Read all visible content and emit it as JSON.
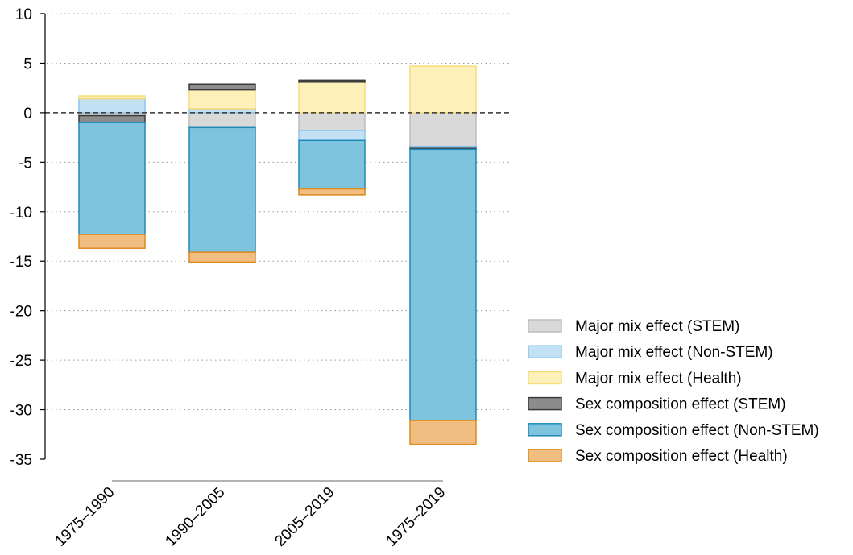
{
  "chart_data": {
    "type": "bar",
    "stacked": true,
    "categories": [
      "1975–1990",
      "1990–2005",
      "2005–2019",
      "1975–2019"
    ],
    "ylim": [
      -35,
      10
    ],
    "yticks": [
      "10",
      "5",
      "0",
      "-5",
      "-10",
      "-15",
      "-20",
      "-25",
      "-30",
      "-35"
    ],
    "ytick_values": [
      10,
      5,
      0,
      -5,
      -10,
      -15,
      -20,
      -25,
      -30,
      -35
    ],
    "grid": "horizontal dotted",
    "zero_line": "dashed",
    "legend_position": "right",
    "series": [
      {
        "name": "Major mix effect (STEM)",
        "fill": "#d9d9d9",
        "stroke": "#bdbdbd",
        "values": [
          -0.3,
          -1.5,
          -1.8,
          -3.4
        ]
      },
      {
        "name": "Major mix effect (Non-STEM)",
        "fill": "#c3e1f5",
        "stroke": "#8cc6ea",
        "values": [
          1.4,
          0.4,
          -1.0,
          -0.2
        ]
      },
      {
        "name": "Major mix effect (Health)",
        "fill": "#fdf0b8",
        "stroke": "#f5dc7a",
        "values": [
          0.3,
          1.9,
          3.1,
          4.7
        ]
      },
      {
        "name": "Sex composition effect (STEM)",
        "fill": "#8c8c8c",
        "stroke": "#3a3a3a",
        "values": [
          -0.7,
          0.6,
          0.2,
          -0.1
        ]
      },
      {
        "name": "Sex composition effect (Non-STEM)",
        "fill": "#7fc4df",
        "stroke": "#1f8ab8",
        "values": [
          -11.3,
          -12.6,
          -4.9,
          -27.4
        ]
      },
      {
        "name": "Sex composition effect (Health)",
        "fill": "#f1be82",
        "stroke": "#dd8a1e",
        "values": [
          -1.4,
          -1.0,
          -0.6,
          -2.4
        ]
      }
    ]
  }
}
